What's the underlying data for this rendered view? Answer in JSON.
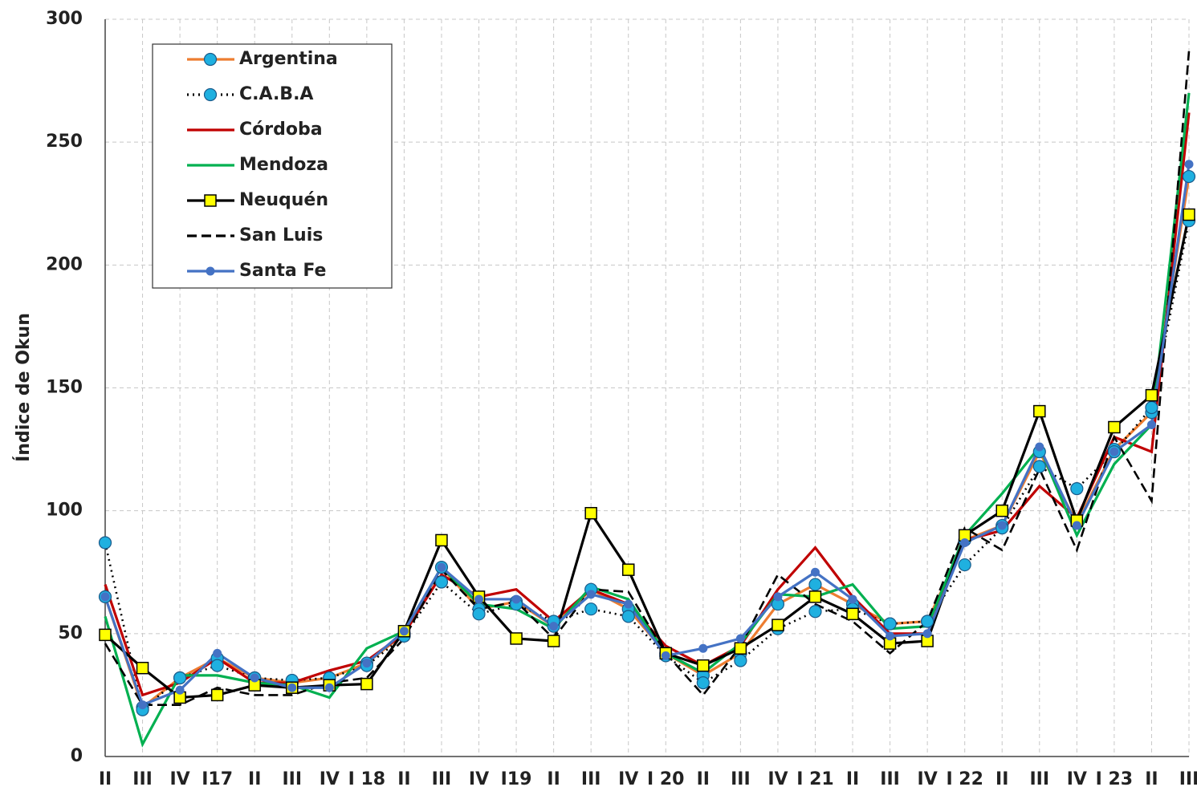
{
  "chart_data": {
    "type": "line",
    "y_label": "Índice de Okun",
    "categories": [
      "II",
      "III",
      "IV",
      "I17",
      "II",
      "III",
      "IV",
      "I 18",
      "II",
      "III",
      "IV",
      "I19",
      "II",
      "III",
      "IV",
      "I 20",
      "II",
      "III",
      "IV",
      "I 21",
      "II",
      "III",
      "IV",
      "I 22",
      "II",
      "III",
      "IV",
      "I 23",
      "II",
      "III"
    ],
    "ylim": [
      0,
      300
    ],
    "yticks": [
      0,
      50,
      100,
      150,
      200,
      250,
      300
    ],
    "grid": true,
    "legend": "upper left",
    "series": [
      {
        "name": "Argentina",
        "color": "#ed7d31",
        "dash": "solid",
        "marker": "circle",
        "marker_color": "#1fb0e0",
        "values": [
          65,
          20,
          32,
          40,
          32,
          30,
          32,
          38,
          50,
          77,
          60,
          63,
          53,
          68,
          60,
          42,
          33,
          42,
          62,
          70,
          62,
          54,
          55,
          88,
          94,
          124,
          95,
          125,
          140,
          236
        ]
      },
      {
        "name": "C.A.B.A",
        "color": "#000000",
        "dash": "dotted",
        "marker": "circle",
        "marker_color": "#1fb0e0",
        "values": [
          87,
          19,
          32,
          37,
          32,
          31,
          32,
          37,
          49,
          71,
          58,
          62,
          55,
          60,
          57,
          41,
          30,
          39,
          52,
          59,
          60,
          54,
          55,
          78,
          93,
          118,
          109,
          124,
          142,
          218
        ]
      },
      {
        "name": "Córdoba",
        "color": "#c00000",
        "dash": "solid",
        "marker": "none",
        "values": [
          70,
          25,
          30,
          40,
          30,
          30,
          35,
          39,
          50,
          74,
          65,
          68,
          55,
          68,
          62,
          45,
          37,
          45,
          68,
          85,
          65,
          50,
          50,
          88,
          92,
          110,
          97,
          130,
          124,
          262
        ]
      },
      {
        "name": "Mendoza",
        "color": "#00b050",
        "dash": "solid",
        "marker": "none",
        "values": [
          57,
          5,
          33,
          33,
          30,
          29,
          24,
          44,
          51,
          77,
          62,
          60,
          52,
          69,
          64,
          42,
          34,
          46,
          66,
          65,
          70,
          52,
          53,
          90,
          107,
          126,
          90,
          119,
          135,
          270
        ]
      },
      {
        "name": "Neuquén",
        "color": "#000000",
        "dash": "solid",
        "marker": "square",
        "marker_color": "#ffff00",
        "values": [
          49.5,
          36,
          24,
          25,
          29,
          28,
          29,
          29.5,
          51,
          88,
          65,
          48,
          47,
          99,
          76,
          42,
          37,
          44,
          53.5,
          65,
          58,
          46,
          47,
          90,
          100,
          140.5,
          96,
          134,
          147,
          220.5
        ]
      },
      {
        "name": "San Luis",
        "color": "#000000",
        "dash": "dashed",
        "marker": "none",
        "values": [
          46,
          21,
          21,
          28,
          25,
          25,
          30,
          32,
          48,
          76,
          60,
          63,
          48,
          68,
          67,
          42,
          25,
          45,
          74,
          62,
          55,
          42,
          55,
          93,
          84,
          117,
          84,
          130,
          104,
          287
        ]
      },
      {
        "name": "Santa Fe",
        "color": "#4472c4",
        "dash": "solid",
        "marker": "dot",
        "marker_color": "#4472c4",
        "values": [
          65,
          21,
          27,
          42,
          32,
          28,
          28,
          38,
          51,
          77,
          64,
          64,
          53,
          66,
          62,
          41,
          44,
          48,
          65,
          75,
          64,
          49,
          50,
          87,
          94,
          126,
          94,
          124,
          135,
          241
        ]
      }
    ]
  }
}
